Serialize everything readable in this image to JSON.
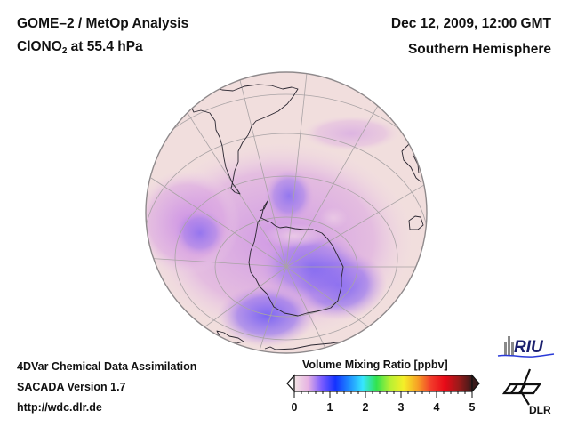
{
  "header": {
    "title": "GOME–2 / MetOp Analysis",
    "species_prefix": "ClONO",
    "species_sub": "2",
    "species_suffix": " at 55.4 hPa",
    "date": "Dec 12, 2009, 12:00 GMT",
    "region": "Southern Hemisphere"
  },
  "footer": {
    "line1": "4DVar Chemical Data Assimilation",
    "line2": "SACADA Version 1.7",
    "line3": "http://wdc.dlr.de"
  },
  "colorbar": {
    "title": "Volume Mixing Ratio [ppbv]",
    "ticks": [
      "0",
      "1",
      "2",
      "3",
      "4",
      "5"
    ],
    "colors": [
      "#f2e4e4",
      "#e7b3e3",
      "#7a5cff",
      "#1432ff",
      "#1e8cff",
      "#37e6ff",
      "#31e34f",
      "#b7f033",
      "#f5ef28",
      "#f7a325",
      "#f23b2a",
      "#e80a18",
      "#9c1a1a",
      "#3a1a1a"
    ]
  },
  "logos": {
    "riu": "RIU",
    "dlr": "DLR"
  },
  "map": {
    "ocean_color": "#f1dedd",
    "grid_color": "#a9a3a5",
    "coast_color": "#2a2630",
    "low_color": "#7b66f2",
    "mid_color": "#d59ae0"
  }
}
